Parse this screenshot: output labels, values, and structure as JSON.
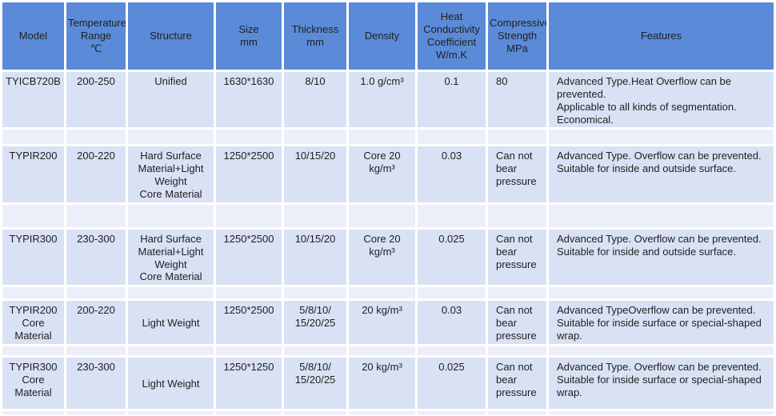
{
  "colors": {
    "header_bg": "#5B8BD8",
    "row_bg": "#D9E1F4",
    "spacer_bg": "#ECEFF9",
    "grid": "#FFFFFF",
    "text": "#1F1F1F"
  },
  "table": {
    "columns": [
      {
        "key": "model",
        "label": "Model"
      },
      {
        "key": "temp_range",
        "label": "Temperature\nRange\n℃"
      },
      {
        "key": "structure",
        "label": "Structure"
      },
      {
        "key": "size",
        "label": "Size\nmm"
      },
      {
        "key": "thickness",
        "label": "Thickness\nmm"
      },
      {
        "key": "density",
        "label": "Density"
      },
      {
        "key": "heat_conductivity",
        "label": "Heat\nConductivity\nCoefficient\nW/m.K"
      },
      {
        "key": "compressive_strength",
        "label": "Compressive\nStrength\nMPa"
      },
      {
        "key": "features",
        "label": "Features"
      }
    ],
    "rows": [
      {
        "model": "TYICB720B",
        "temp_range": "200-250",
        "structure": "Unified",
        "structure_valign": "top",
        "size": "1630*1630",
        "thickness": "8/10",
        "density": "1.0 g/cm³",
        "heat_conductivity": "0.1",
        "compressive_strength": "80",
        "features": "Advanced Type.Heat Overflow can be prevented.\nApplicable to all kinds of segmentation.\nEconomical."
      },
      {
        "model": "TYPIR200",
        "temp_range": "200-220",
        "structure": "Hard Surface Material+Light Weight\nCore Material",
        "structure_valign": "top",
        "size": "1250*2500",
        "thickness": "10/15/20",
        "density": "Core 20\nkg/m³",
        "heat_conductivity": "0.03",
        "compressive_strength": "Can not bear pressure",
        "features": "Advanced Type. Overflow can be prevented.\nSuitable for inside and outside surface."
      },
      {
        "model": "TYPIR300",
        "temp_range": "230-300",
        "structure": "Hard Surface Material+Light Weight\nCore Material",
        "structure_valign": "top",
        "size": "1250*2500",
        "thickness": "10/15/20",
        "density": "Core 20\nkg/m³",
        "heat_conductivity": "0.025",
        "compressive_strength": "Can not bear pressure",
        "features": "Advanced Type. Overflow can be prevented.\nSuitable for inside and outside surface."
      },
      {
        "model": "TYPIR200 Core Material",
        "temp_range": "200-220",
        "structure": "Light Weight",
        "structure_valign": "middle",
        "size": "1250*2500",
        "thickness": "5/8/10/\n15/20/25",
        "density": "20 kg/m³",
        "heat_conductivity": "0.03",
        "compressive_strength": "Can not bear pressure",
        "features": "Advanced TypeOverflow can be prevented.\nSuitable for inside surface or special-shaped wrap."
      },
      {
        "model": "TYPIR300 Core Material",
        "temp_range": "230-300",
        "structure": "Light Weight",
        "structure_valign": "middle",
        "size": "1250*1250",
        "thickness": "5/8/10/\n15/20/25",
        "density": "20 kg/m³",
        "heat_conductivity": "0.025",
        "compressive_strength": "Can not bear pressure",
        "features": "Advanced Type. Overflow can be prevented.\nSuitable for inside surface or special-shaped wrap."
      }
    ]
  }
}
